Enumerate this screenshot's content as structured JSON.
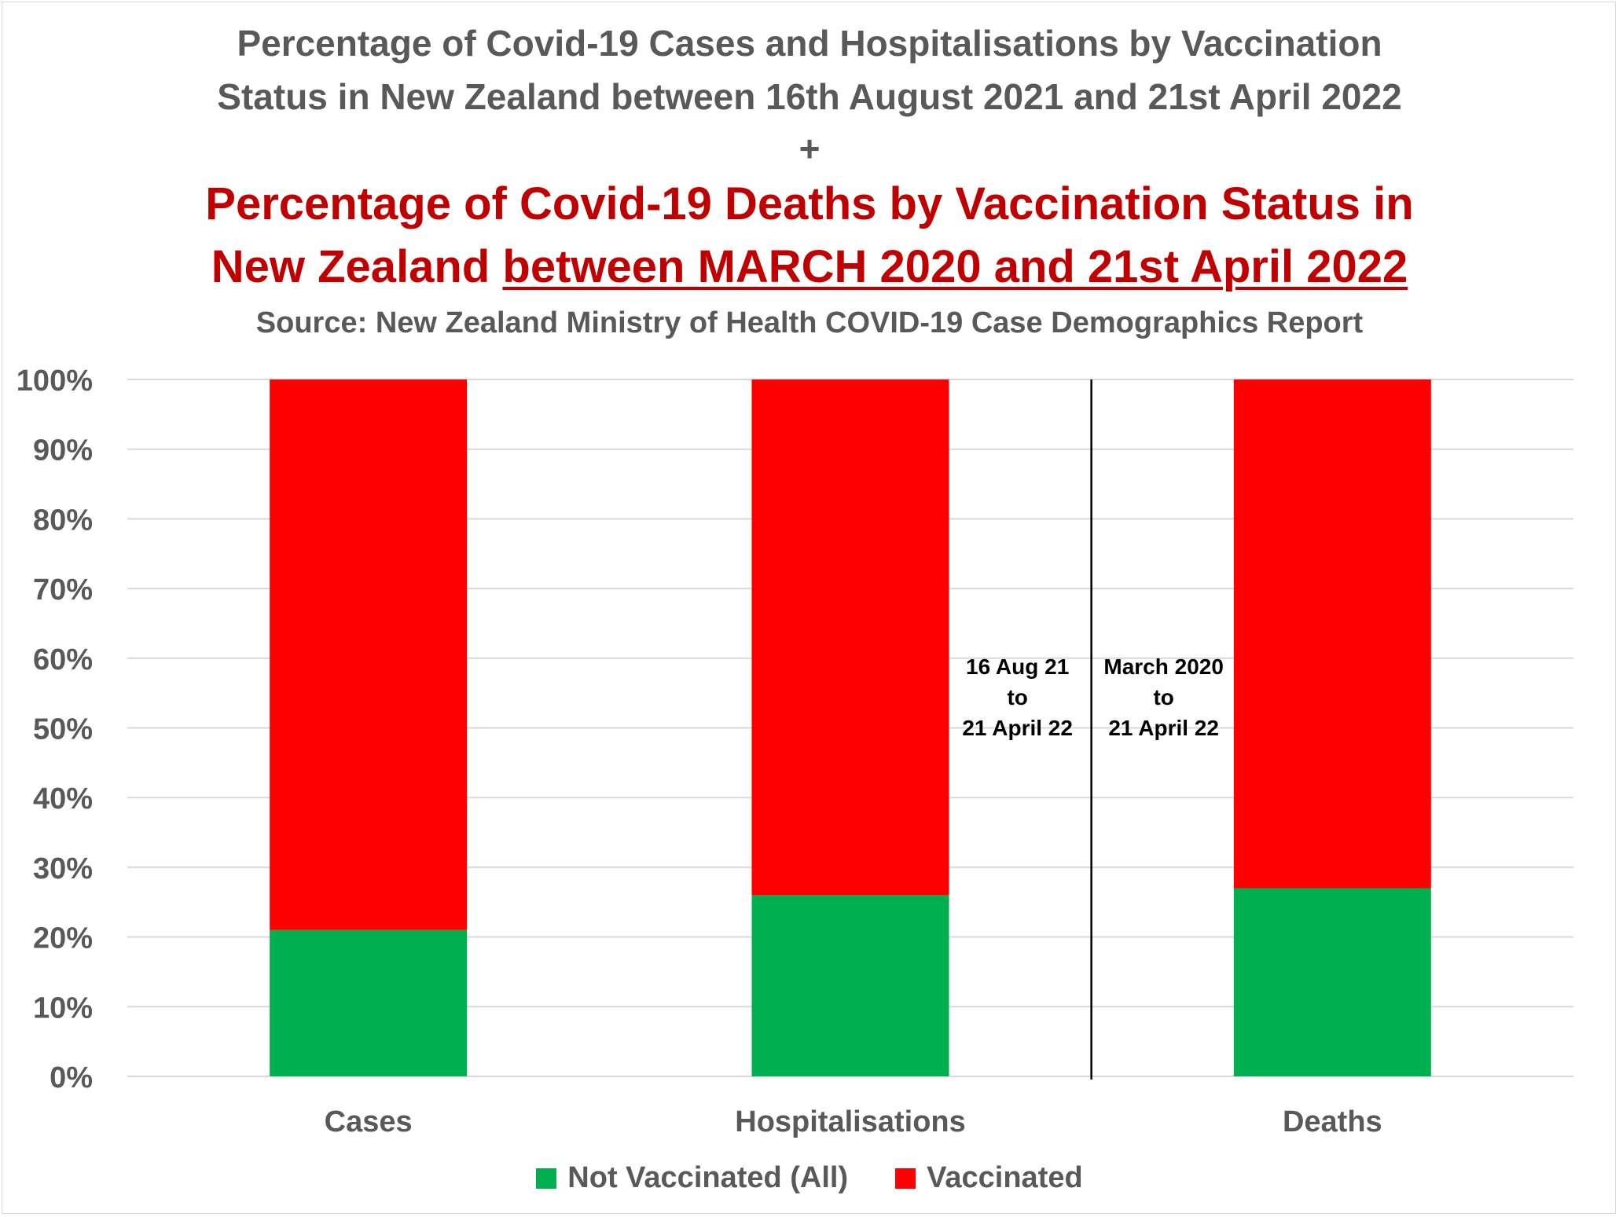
{
  "chart_data": {
    "type": "bar",
    "stacked": true,
    "title_lines": [
      "Percentage of Covid-19 Cases and Hospitalisations by Vaccination",
      "Status in New Zealand between 16th August 2021 and 21st April 2022",
      "+"
    ],
    "subtitle_red_line1": "Percentage of Covid-19 Deaths by Vaccination Status in",
    "subtitle_red_line2_plain": "New Zealand ",
    "subtitle_red_line2_underlined": "between MARCH 2020 and 21st April 2022",
    "source": "Source: New Zealand Ministry of Health COVID-19 Case Demographics Report",
    "categories": [
      "Cases",
      "Hospitalisations",
      "Deaths"
    ],
    "series": [
      {
        "name": "Not Vaccinated (All)",
        "color": "#00b050",
        "values": [
          0.21,
          0.26,
          0.27
        ]
      },
      {
        "name": "Vaccinated",
        "color": "#ff0000",
        "values": [
          0.79,
          0.74,
          0.73
        ]
      }
    ],
    "ylim": [
      0,
      1
    ],
    "yticks": [
      "0%",
      "10%",
      "20%",
      "30%",
      "40%",
      "50%",
      "60%",
      "70%",
      "80%",
      "90%",
      "100%"
    ],
    "grid": true,
    "legend_position": "bottom",
    "annotations": {
      "left_period": [
        "16 Aug 21",
        "to",
        "21 April 22"
      ],
      "right_period": [
        "March 2020",
        "to",
        "21 April 22"
      ]
    }
  }
}
